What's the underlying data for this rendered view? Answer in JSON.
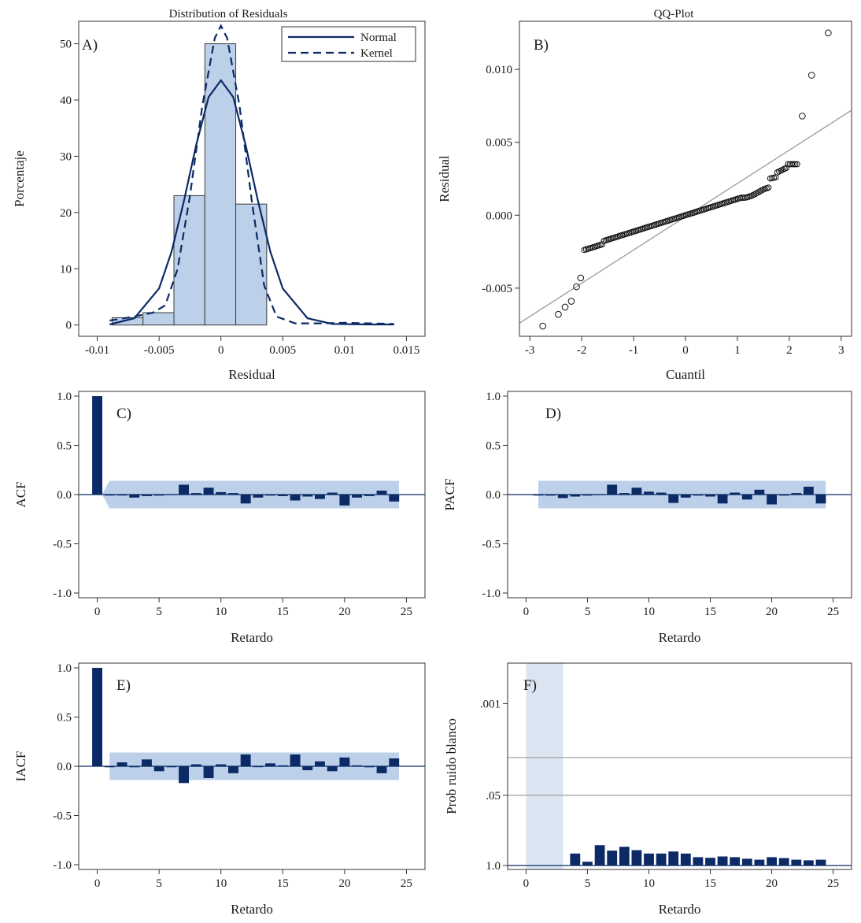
{
  "colors": {
    "bar_fill": "#bcd0ea",
    "bar_stroke": "#3a3a3a",
    "curve": "#0b2a66",
    "spike": "#0b2a66",
    "band": "#bcd0ea",
    "gray_line": "#999999",
    "frame": "#333333"
  },
  "chart_data": [
    {
      "id": "A",
      "type": "bar",
      "panel_label": "A)",
      "title": "Distribution of Residuals",
      "xlabel": "Residual",
      "ylabel": "Porcentaje",
      "xlim": [
        -0.0115,
        0.0165
      ],
      "ylim": [
        -2,
        54
      ],
      "x_ticks": [
        -0.01,
        -0.005,
        0,
        0.005,
        0.01,
        0.015
      ],
      "x_tick_labels": [
        "-0.01",
        "-0.005",
        "0",
        "0.005",
        "0.01",
        "0.015"
      ],
      "y_ticks": [
        0,
        10,
        20,
        30,
        40,
        50
      ],
      "y_tick_labels": [
        "0",
        "10",
        "20",
        "30",
        "40",
        "50"
      ],
      "bin_edges": [
        -0.0088,
        -0.0063,
        -0.0038,
        -0.0013,
        0.0012,
        0.0037
      ],
      "bar_values": [
        1.3,
        2.2,
        23,
        50,
        21.5
      ],
      "legend": [
        "Normal",
        "Kernel"
      ],
      "legend_position": "top-right",
      "normal_curve": {
        "x": [
          -0.009,
          -0.007,
          -0.005,
          -0.004,
          -0.003,
          -0.002,
          -0.001,
          0,
          0.001,
          0.002,
          0.003,
          0.004,
          0.005,
          0.007,
          0.009,
          0.012,
          0.014
        ],
        "y": [
          0.1,
          1.2,
          6.5,
          13,
          22,
          32,
          40.5,
          43.5,
          40.5,
          32,
          22,
          13,
          6.5,
          1.2,
          0.2,
          0.1,
          0.1
        ]
      },
      "kernel_curve": {
        "x": [
          -0.009,
          -0.007,
          -0.0055,
          -0.0045,
          -0.0035,
          -0.0025,
          -0.0015,
          -0.0005,
          0,
          0.0005,
          0.0015,
          0.0025,
          0.0035,
          0.0045,
          0.006,
          0.008,
          0.01,
          0.012,
          0.014
        ],
        "y": [
          0.8,
          1.5,
          2.2,
          3.5,
          10,
          23,
          39,
          51,
          53.2,
          51,
          39,
          22,
          7,
          1.5,
          0.3,
          0.3,
          0.4,
          0.3,
          0.2
        ]
      }
    },
    {
      "id": "B",
      "type": "scatter",
      "panel_label": "B)",
      "title": "QQ-Plot",
      "xlabel": "Cuantil",
      "ylabel": "Residual",
      "xlim": [
        -3.2,
        3.2
      ],
      "ylim": [
        -0.0083,
        0.0133
      ],
      "x_ticks": [
        -3,
        -2,
        -1,
        0,
        1,
        2,
        3
      ],
      "x_tick_labels": [
        "-3",
        "-2",
        "-1",
        "0",
        "1",
        "2",
        "3"
      ],
      "y_ticks": [
        -0.005,
        0,
        0.005,
        0.01
      ],
      "y_tick_labels": [
        "-0.005",
        "0.000",
        "0.005",
        "0.010"
      ],
      "reference_line": {
        "x": [
          -3.2,
          3.2
        ],
        "y": [
          -0.0074,
          0.0072
        ]
      },
      "point_count": 120,
      "points_x_range": [
        -2.75,
        2.75
      ],
      "outliers": [
        {
          "x": -2.75,
          "y": -0.0076
        },
        {
          "x": -2.45,
          "y": -0.0068
        },
        {
          "x": -2.32,
          "y": -0.0063
        },
        {
          "x": -2.2,
          "y": -0.0059
        },
        {
          "x": -2.1,
          "y": -0.0049
        },
        {
          "x": -2.02,
          "y": -0.0043
        },
        {
          "x": 2.25,
          "y": 0.0068
        },
        {
          "x": 2.43,
          "y": 0.0096
        },
        {
          "x": 2.75,
          "y": 0.0125
        }
      ]
    },
    {
      "id": "C",
      "type": "bar",
      "panel_label": "C)",
      "xlabel": "Retardo",
      "ylabel": "ACF",
      "xlim": [
        -1.5,
        26.5
      ],
      "ylim": [
        -1.0,
        1.0
      ],
      "x_ticks": [
        0,
        5,
        10,
        15,
        20,
        25
      ],
      "y_ticks": [
        1.0,
        0.5,
        0.0,
        -0.5,
        -1.0
      ],
      "y_tick_labels": [
        "1.0",
        "0.5",
        "0.0",
        "-0.5",
        "-1.0"
      ],
      "lags": [
        0,
        1,
        2,
        3,
        4,
        5,
        6,
        7,
        8,
        9,
        10,
        11,
        12,
        13,
        14,
        15,
        16,
        17,
        18,
        19,
        20,
        21,
        22,
        23,
        24
      ],
      "values": [
        1.0,
        -0.005,
        0.0,
        -0.03,
        -0.015,
        -0.01,
        0.005,
        0.1,
        0.015,
        0.07,
        0.025,
        0.015,
        -0.09,
        -0.03,
        -0.01,
        -0.015,
        -0.06,
        -0.02,
        -0.045,
        0.02,
        -0.11,
        -0.03,
        -0.015,
        0.04,
        -0.07
      ],
      "conf_band": {
        "lag_start": 0.4,
        "lag_knee": 1,
        "start_half_width": 0.005,
        "half_width": 0.14,
        "lag_end": 24.4
      }
    },
    {
      "id": "D",
      "type": "bar",
      "panel_label": "D)",
      "xlabel": "Retardo",
      "ylabel": "PACF",
      "xlim": [
        -1.5,
        26.5
      ],
      "ylim": [
        -1.0,
        1.0
      ],
      "x_ticks": [
        0,
        5,
        10,
        15,
        20,
        25
      ],
      "y_ticks": [
        1.0,
        0.5,
        0.0,
        -0.5,
        -1.0
      ],
      "y_tick_labels": [
        "1.0",
        "0.5",
        "0.0",
        "-0.5",
        "-1.0"
      ],
      "lags": [
        1,
        2,
        3,
        4,
        5,
        6,
        7,
        8,
        9,
        10,
        11,
        12,
        13,
        14,
        15,
        16,
        17,
        18,
        19,
        20,
        21,
        22,
        23,
        24
      ],
      "values": [
        -0.005,
        -0.01,
        -0.035,
        -0.02,
        -0.01,
        0.005,
        0.1,
        0.015,
        0.07,
        0.03,
        0.02,
        -0.085,
        -0.03,
        -0.01,
        -0.02,
        -0.09,
        0.02,
        -0.05,
        0.05,
        -0.1,
        -0.01,
        0.015,
        0.08,
        -0.09
      ],
      "conf_band": {
        "lag_start": 1,
        "lag_knee": 1,
        "start_half_width": 0.14,
        "half_width": 0.14,
        "lag_end": 24.4
      }
    },
    {
      "id": "E",
      "type": "bar",
      "panel_label": "E)",
      "xlabel": "Retardo",
      "ylabel": "IACF",
      "xlim": [
        -1.5,
        26.5
      ],
      "ylim": [
        -1.0,
        1.0
      ],
      "x_ticks": [
        0,
        5,
        10,
        15,
        20,
        25
      ],
      "y_ticks": [
        1.0,
        0.5,
        0.0,
        -0.5,
        -1.0
      ],
      "y_tick_labels": [
        "1.0",
        "0.5",
        "0.0",
        "-0.5",
        "-1.0"
      ],
      "lags": [
        0,
        1,
        2,
        3,
        4,
        5,
        6,
        7,
        8,
        9,
        10,
        11,
        12,
        13,
        14,
        15,
        16,
        17,
        18,
        19,
        20,
        21,
        22,
        23,
        24
      ],
      "values": [
        1.0,
        -0.01,
        0.04,
        -0.01,
        0.07,
        -0.05,
        -0.01,
        -0.17,
        0.02,
        -0.12,
        0.02,
        -0.07,
        0.12,
        0.0,
        0.03,
        0.01,
        0.12,
        -0.04,
        0.05,
        -0.05,
        0.09,
        0.01,
        -0.01,
        -0.07,
        0.08
      ],
      "conf_band": {
        "lag_start": 1,
        "lag_knee": 1,
        "start_half_width": 0.14,
        "half_width": 0.14,
        "lag_end": 24.4
      }
    },
    {
      "id": "F",
      "type": "bar",
      "panel_label": "F)",
      "xlabel": "Retardo",
      "ylabel": "Prob ruido blanco",
      "xlim": [
        -1.5,
        26.5
      ],
      "scale": "-log10(p)",
      "ylim": [
        0,
        3.75
      ],
      "x_ticks": [
        0,
        5,
        10,
        15,
        20,
        25
      ],
      "y_tick_values": [
        1.0,
        0.05,
        0.001
      ],
      "y_tick_labels": [
        "1.0",
        ".05",
        ".001"
      ],
      "reference_lines": [
        0.05,
        0.01
      ],
      "shaded_lags": [
        0,
        3
      ],
      "lags": [
        4,
        5,
        6,
        7,
        8,
        9,
        10,
        11,
        12,
        13,
        14,
        15,
        16,
        17,
        18,
        19,
        20,
        21,
        22,
        23,
        24
      ],
      "values": [
        0.6,
        0.85,
        0.42,
        0.53,
        0.45,
        0.52,
        0.6,
        0.6,
        0.55,
        0.6,
        0.7,
        0.72,
        0.68,
        0.7,
        0.75,
        0.78,
        0.7,
        0.73,
        0.78,
        0.8,
        0.78
      ]
    }
  ]
}
